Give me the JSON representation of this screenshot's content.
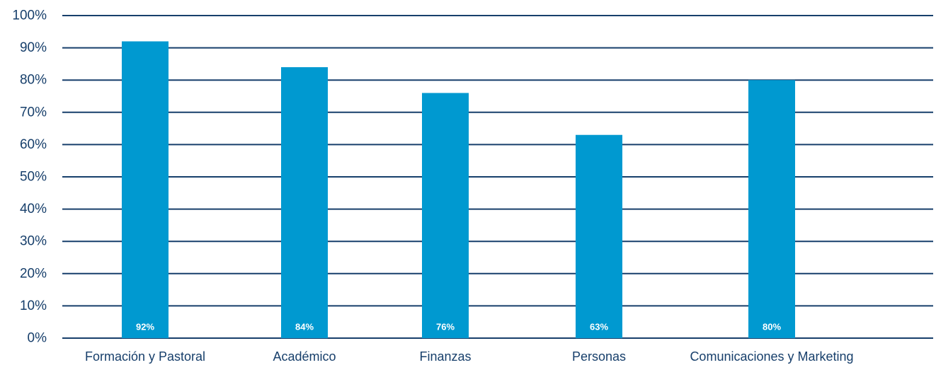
{
  "chart_data": {
    "type": "bar",
    "categories": [
      "Formación y Pastoral",
      "Académico",
      "Finanzas",
      "Personas",
      "Comunicaciones y Marketing"
    ],
    "values": [
      92,
      84,
      76,
      63,
      80
    ],
    "value_labels": [
      "92%",
      "84%",
      "76%",
      "63%",
      "80%"
    ],
    "y_ticks": [
      "0%",
      "10%",
      "20%",
      "30%",
      "40%",
      "50%",
      "60%",
      "70%",
      "80%",
      "90%",
      "100%"
    ],
    "ylim": [
      0,
      100
    ],
    "grid": true,
    "legend": "none",
    "title": "",
    "xlabel": "",
    "ylabel": ""
  },
  "colors": {
    "bar": "#0099d0",
    "gridline": "#173f6b",
    "text": "#173f6b",
    "value_text": "#ffffff"
  }
}
